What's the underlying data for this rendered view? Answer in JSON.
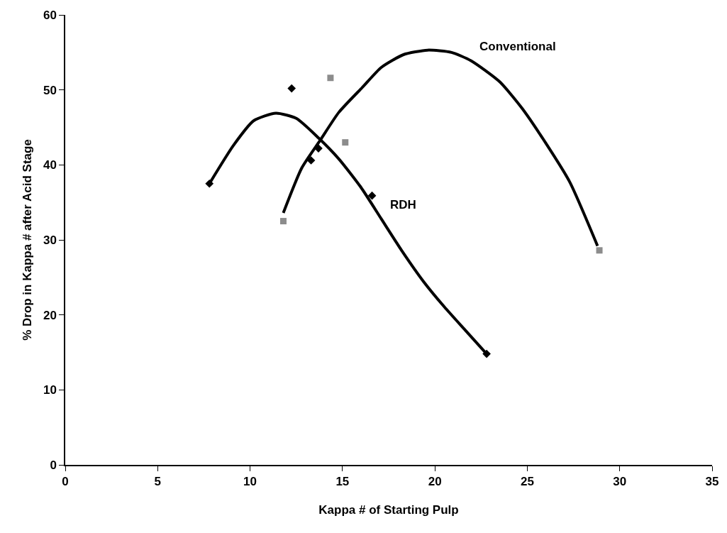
{
  "chart_data": {
    "type": "scatter",
    "xlabel": "Kappa # of Starting Pulp",
    "ylabel": "% Drop in Kappa # after Acid Stage",
    "xlim": [
      0,
      35
    ],
    "xticks": [
      0,
      5,
      10,
      15,
      20,
      25,
      30,
      35
    ],
    "ylim": [
      0,
      60
    ],
    "yticks": [
      0,
      10,
      20,
      30,
      40,
      50,
      60
    ],
    "grid": false,
    "legend": false,
    "series": [
      {
        "marker": "diamond",
        "color": "#000000",
        "x": [
          7.8,
          12.25,
          13.3,
          13.7,
          16.6,
          22.8
        ],
        "values": [
          37.5,
          50.2,
          40.6,
          42.2,
          35.9,
          14.8
        ]
      },
      {
        "marker": "square",
        "color": "#8c8c8c",
        "x": [
          11.8,
          14.35,
          15.15,
          28.9
        ],
        "values": [
          32.5,
          51.6,
          43.0,
          28.6
        ]
      },
      {
        "type": "line",
        "name": "RDH",
        "marker": "none",
        "line_style": "solid",
        "color": "#000000",
        "x": [
          7.8,
          9.1,
          10.2,
          11.4,
          12.5,
          13.7,
          14.8,
          16.0,
          17.1,
          18.2,
          19.4,
          20.5,
          21.7,
          22.8
        ],
        "values": [
          37.5,
          42.6,
          45.9,
          46.9,
          46.2,
          43.6,
          40.8,
          37.0,
          32.8,
          28.6,
          24.4,
          21.1,
          17.8,
          14.8
        ]
      },
      {
        "type": "line",
        "name": "Conventional",
        "marker": "none",
        "line_style": "solid",
        "color": "#000000",
        "x": [
          11.8,
          12.8,
          13.8,
          14.8,
          16.1,
          17.1,
          18.3,
          19.6,
          20.9,
          21.95,
          23.5,
          24.7,
          26.0,
          27.3,
          28.8
        ],
        "values": [
          33.6,
          39.6,
          43.3,
          47.0,
          50.4,
          53.0,
          54.7,
          55.3,
          55.0,
          53.9,
          51.1,
          47.6,
          42.9,
          37.7,
          29.2
        ]
      }
    ]
  }
}
